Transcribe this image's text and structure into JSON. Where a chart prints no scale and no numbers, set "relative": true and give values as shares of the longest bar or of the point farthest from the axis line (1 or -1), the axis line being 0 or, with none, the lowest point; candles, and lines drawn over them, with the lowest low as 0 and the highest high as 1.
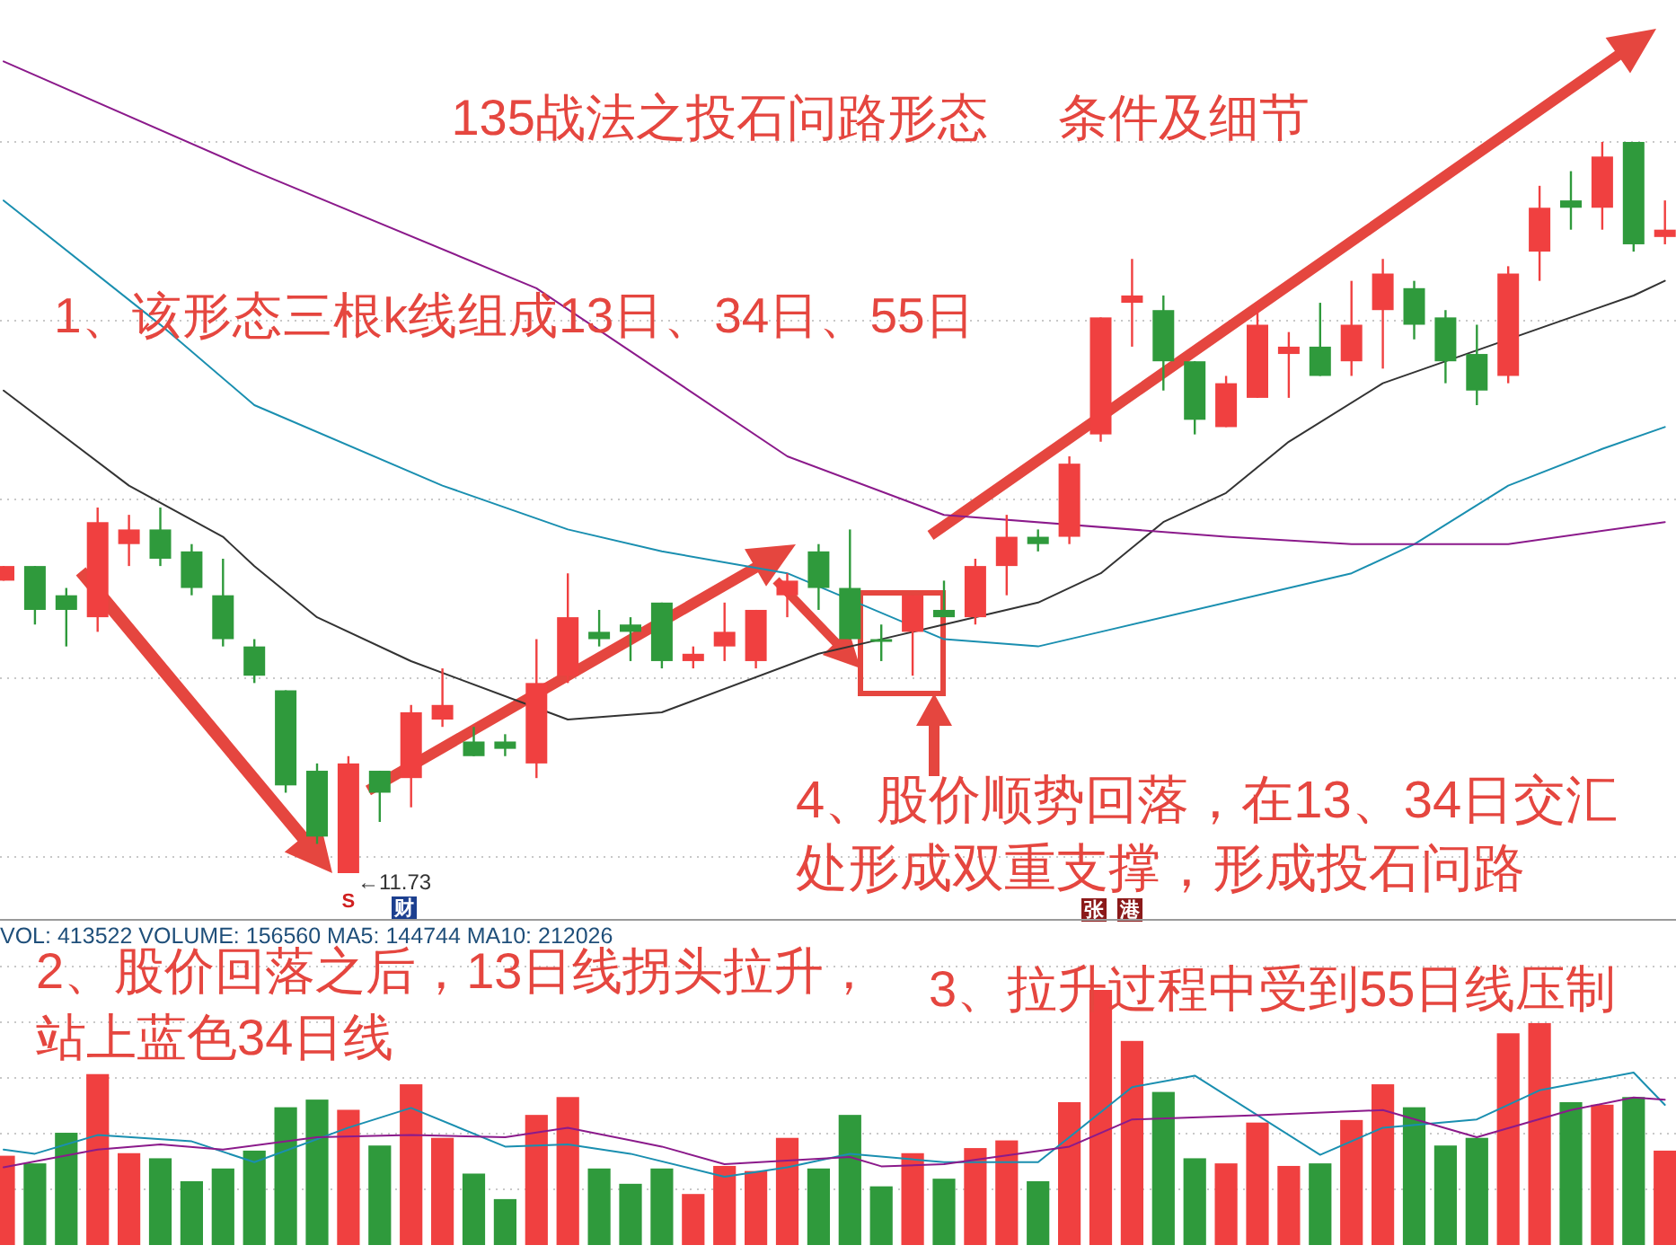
{
  "chart_data": [
    {
      "type": "candlestick",
      "title": "135战法之投石问路形态     条件及细节",
      "relative": true,
      "grid": true,
      "categories": [
        null,
        null,
        null,
        null,
        null,
        null,
        null,
        null,
        null,
        null,
        null,
        null,
        null,
        null,
        null,
        null,
        null,
        null,
        null,
        null,
        null,
        null,
        null,
        null,
        null,
        null,
        null,
        null,
        null,
        null,
        null,
        null,
        null,
        null,
        null,
        null,
        null,
        null,
        null,
        null,
        null,
        null,
        null,
        null,
        null,
        null,
        null,
        null,
        null,
        null,
        null,
        null,
        null,
        null
      ],
      "ohlc": [
        [
          0.4,
          0.42,
          0.4,
          0.42
        ],
        [
          0.42,
          0.42,
          0.34,
          0.36
        ],
        [
          0.38,
          0.39,
          0.31,
          0.36
        ],
        [
          0.35,
          0.5,
          0.33,
          0.48
        ],
        [
          0.45,
          0.49,
          0.42,
          0.47
        ],
        [
          0.47,
          0.5,
          0.42,
          0.43
        ],
        [
          0.44,
          0.45,
          0.38,
          0.39
        ],
        [
          0.38,
          0.43,
          0.31,
          0.32
        ],
        [
          0.31,
          0.32,
          0.26,
          0.27
        ],
        [
          0.25,
          0.25,
          0.11,
          0.12
        ],
        [
          0.14,
          0.15,
          0.04,
          0.05
        ],
        [
          0,
          0.16,
          0,
          0.15
        ],
        [
          0.14,
          0.14,
          0.07,
          0.11
        ],
        [
          0.13,
          0.23,
          0.09,
          0.22
        ],
        [
          0.21,
          0.28,
          0.2,
          0.23
        ],
        [
          0.18,
          0.2,
          0.16,
          0.16
        ],
        [
          0.18,
          0.19,
          0.16,
          0.17
        ],
        [
          0.15,
          0.32,
          0.13,
          0.26
        ],
        [
          0.27,
          0.41,
          0.26,
          0.35
        ],
        [
          0.33,
          0.36,
          0.31,
          0.32
        ],
        [
          0.34,
          0.35,
          0.29,
          0.33
        ],
        [
          0.37,
          0.37,
          0.28,
          0.29
        ],
        [
          0.29,
          0.31,
          0.28,
          0.3
        ],
        [
          0.31,
          0.37,
          0.29,
          0.33
        ],
        [
          0.29,
          0.36,
          0.28,
          0.36
        ],
        [
          0.38,
          0.41,
          0.35,
          0.4
        ],
        [
          0.44,
          0.45,
          0.36,
          0.39
        ],
        [
          0.39,
          0.47,
          0.32,
          0.32
        ],
        [
          0.32,
          0.34,
          0.29,
          0.32
        ],
        [
          0.33,
          0.38,
          0.27,
          0.38
        ],
        [
          0.36,
          0.4,
          0.35,
          0.35
        ],
        [
          0.35,
          0.43,
          0.34,
          0.42
        ],
        [
          0.42,
          0.49,
          0.38,
          0.46
        ],
        [
          0.46,
          0.47,
          0.44,
          0.45
        ],
        [
          0.46,
          0.57,
          0.45,
          0.56
        ],
        [
          0.6,
          0.76,
          0.59,
          0.76
        ],
        [
          0.78,
          0.84,
          0.72,
          0.79
        ],
        [
          0.77,
          0.79,
          0.66,
          0.7
        ],
        [
          0.7,
          0.7,
          0.6,
          0.62
        ],
        [
          0.61,
          0.68,
          0.61,
          0.67
        ],
        [
          0.65,
          0.78,
          0.65,
          0.75
        ],
        [
          0.71,
          0.74,
          0.65,
          0.72
        ],
        [
          0.72,
          0.78,
          0.68,
          0.68
        ],
        [
          0.7,
          0.81,
          0.68,
          0.75
        ],
        [
          0.77,
          0.84,
          0.69,
          0.82
        ],
        [
          0.8,
          0.81,
          0.73,
          0.75
        ],
        [
          0.76,
          0.77,
          0.67,
          0.7
        ],
        [
          0.71,
          0.75,
          0.64,
          0.66
        ],
        [
          0.68,
          0.83,
          0.67,
          0.82
        ],
        [
          0.85,
          0.94,
          0.81,
          0.91
        ],
        [
          0.92,
          0.96,
          0.88,
          0.91
        ],
        [
          0.91,
          1,
          0.88,
          0.98
        ],
        [
          1,
          1,
          0.85,
          0.86
        ],
        [
          0.87,
          0.92,
          0.86,
          0.88
        ]
      ],
      "colors": [
        "#f04040",
        "#2f9a3c",
        "#2f9a3c",
        "#f04040",
        "#f04040",
        "#2f9a3c",
        "#2f9a3c",
        "#2f9a3c",
        "#2f9a3c",
        "#2f9a3c",
        "#2f9a3c",
        "#f04040",
        "#2f9a3c",
        "#f04040",
        "#f04040",
        "#2f9a3c",
        "#2f9a3c",
        "#f04040",
        "#f04040",
        "#2f9a3c",
        "#2f9a3c",
        "#2f9a3c",
        "#f04040",
        "#f04040",
        "#f04040",
        "#f04040",
        "#2f9a3c",
        "#2f9a3c",
        "#2f9a3c",
        "#f04040",
        "#2f9a3c",
        "#f04040",
        "#f04040",
        "#2f9a3c",
        "#f04040",
        "#f04040",
        "#f04040",
        "#2f9a3c",
        "#2f9a3c",
        "#f04040",
        "#f04040",
        "#f04040",
        "#2f9a3c",
        "#f04040",
        "#f04040",
        "#2f9a3c",
        "#2f9a3c",
        "#2f9a3c",
        "#f04040",
        "#f04040",
        "#2f9a3c",
        "#f04040",
        "#2f9a3c",
        "#f04040"
      ],
      "series": [
        {
          "type": "line",
          "color": "#333333",
          "values": [
            0.66,
            null,
            null,
            null,
            0.53,
            null,
            null,
            0.46,
            0.42,
            null,
            0.35,
            null,
            null,
            0.29,
            null,
            null,
            null,
            null,
            0.21,
            null,
            null,
            0.22,
            null,
            null,
            null,
            null,
            0.3,
            null,
            0.32,
            null,
            0.34,
            null,
            null,
            0.37,
            null,
            0.41,
            null,
            0.48,
            null,
            0.52,
            null,
            0.59,
            null,
            null,
            0.67,
            null,
            null,
            null,
            null,
            null,
            null,
            null,
            0.79,
            0.81
          ]
        },
        {
          "type": "line",
          "color": "#1a8fb0",
          "values": [
            0.92,
            null,
            null,
            null,
            null,
            0.75,
            null,
            null,
            0.64,
            null,
            null,
            null,
            null,
            null,
            0.53,
            null,
            null,
            null,
            0.47,
            null,
            null,
            0.44,
            null,
            null,
            null,
            0.41,
            null,
            null,
            null,
            null,
            0.32,
            null,
            null,
            0.31,
            null,
            0.33,
            null,
            null,
            null,
            null,
            null,
            null,
            null,
            0.41,
            null,
            0.45,
            null,
            null,
            0.53,
            null,
            null,
            0.58,
            null,
            0.61
          ]
        },
        {
          "type": "line",
          "color": "#8b1a8b",
          "values": [
            1.11,
            null,
            null,
            null,
            null,
            null,
            null,
            null,
            0.96,
            null,
            null,
            null,
            null,
            null,
            null,
            null,
            null,
            0.8,
            null,
            null,
            null,
            null,
            null,
            null,
            null,
            0.57,
            null,
            null,
            null,
            null,
            0.49,
            null,
            null,
            null,
            null,
            null,
            null,
            null,
            null,
            0.46,
            null,
            null,
            null,
            0.45,
            null,
            null,
            null,
            null,
            0.45,
            null,
            null,
            null,
            null,
            0.48
          ]
        }
      ],
      "annotations": [
        "1、该形态三根k线组成13日、34日、55日",
        "4、股价顺势回落，在13、34日交汇处形成双重支撑，形成投石问路",
        "←11.73",
        "S",
        "财",
        "张",
        "港"
      ]
    },
    {
      "type": "bar",
      "relative": true,
      "grid": true,
      "categories": [
        null,
        null,
        null,
        null,
        null,
        null,
        null,
        null,
        null,
        null,
        null,
        null,
        null,
        null,
        null,
        null,
        null,
        null,
        null,
        null,
        null,
        null,
        null,
        null,
        null,
        null,
        null,
        null,
        null,
        null,
        null,
        null,
        null,
        null,
        null,
        null,
        null,
        null,
        null,
        null,
        null,
        null,
        null,
        null,
        null,
        null,
        null,
        null,
        null,
        null,
        null,
        null,
        null,
        null
      ],
      "values": [
        0.35,
        0.32,
        0.44,
        0.67,
        0.36,
        0.34,
        0.25,
        0.3,
        0.37,
        0.54,
        0.57,
        0.53,
        0.39,
        0.63,
        0.42,
        0.28,
        0.18,
        0.51,
        0.58,
        0.3,
        0.24,
        0.3,
        0.2,
        0.31,
        0.29,
        0.42,
        0.3,
        0.51,
        0.23,
        0.36,
        0.26,
        0.38,
        0.41,
        0.25,
        0.56,
        1,
        0.8,
        0.6,
        0.34,
        0.32,
        0.48,
        0.31,
        0.32,
        0.49,
        0.63,
        0.54,
        0.39,
        0.42,
        0.83,
        0.87,
        0.56,
        0.55,
        0.58,
        0.37
      ],
      "colors": [
        "#f04040",
        "#2f9a3c",
        "#2f9a3c",
        "#f04040",
        "#f04040",
        "#2f9a3c",
        "#2f9a3c",
        "#2f9a3c",
        "#2f9a3c",
        "#2f9a3c",
        "#2f9a3c",
        "#f04040",
        "#2f9a3c",
        "#f04040",
        "#f04040",
        "#2f9a3c",
        "#2f9a3c",
        "#f04040",
        "#f04040",
        "#2f9a3c",
        "#2f9a3c",
        "#2f9a3c",
        "#f04040",
        "#f04040",
        "#f04040",
        "#f04040",
        "#2f9a3c",
        "#2f9a3c",
        "#2f9a3c",
        "#f04040",
        "#2f9a3c",
        "#f04040",
        "#f04040",
        "#2f9a3c",
        "#f04040",
        "#f04040",
        "#f04040",
        "#2f9a3c",
        "#2f9a3c",
        "#f04040",
        "#f04040",
        "#f04040",
        "#2f9a3c",
        "#f04040",
        "#f04040",
        "#2f9a3c",
        "#2f9a3c",
        "#2f9a3c",
        "#f04040",
        "#f04040",
        "#2f9a3c",
        "#f04040",
        "#2f9a3c",
        "#f04040"
      ],
      "annotations": [
        "VOL: 413522 VOLUME: 156560 MA5: 144744 MA10: 212026",
        "2、股价回落之后，13日线拐头拉升，站上蓝色34日线",
        "3、拉升过程中受到55日线压制"
      ]
    },
    {
      "type": "line",
      "relative": true,
      "categories": [
        null,
        null,
        null,
        null,
        null,
        null,
        null,
        null,
        null,
        null,
        null,
        null,
        null,
        null,
        null,
        null,
        null,
        null,
        null,
        null,
        null,
        null,
        null,
        null,
        null,
        null,
        null,
        null,
        null,
        null,
        null,
        null,
        null,
        null,
        null,
        null,
        null,
        null,
        null,
        null,
        null,
        null,
        null,
        null,
        null,
        null,
        null,
        null,
        null,
        null,
        null,
        null,
        null,
        null
      ],
      "series": [
        {
          "color": "#1a8fb0",
          "values": [
            0.26,
            0.22,
            null,
            0.4,
            null,
            null,
            0.34,
            null,
            0.14,
            null,
            null,
            0.47,
            null,
            0.66,
            null,
            null,
            0.29,
            null,
            0.31,
            null,
            0.22,
            null,
            null,
            0,
            null,
            0.09,
            null,
            0.22,
            null,
            null,
            0.14,
            null,
            null,
            0.14,
            null,
            null,
            0.86,
            null,
            0.97,
            null,
            null,
            null,
            0.21,
            null,
            0.47,
            null,
            null,
            0.55,
            null,
            0.83,
            null,
            null,
            1,
            0.69
          ]
        },
        {
          "color": "#8b1a8b",
          "values": [
            0.09,
            null,
            null,
            0.26,
            null,
            0.31,
            null,
            0.26,
            null,
            null,
            0.38,
            null,
            null,
            0.4,
            null,
            null,
            0.38,
            null,
            0.47,
            null,
            null,
            0.29,
            null,
            0.12,
            null,
            null,
            null,
            0.19,
            0.1,
            null,
            0.12,
            null,
            null,
            null,
            0.29,
            null,
            0.55,
            null,
            null,
            null,
            0.59,
            null,
            null,
            null,
            0.64,
            null,
            null,
            0.38,
            null,
            null,
            0.64,
            null,
            0.76,
            0.74
          ]
        }
      ]
    }
  ]
}
